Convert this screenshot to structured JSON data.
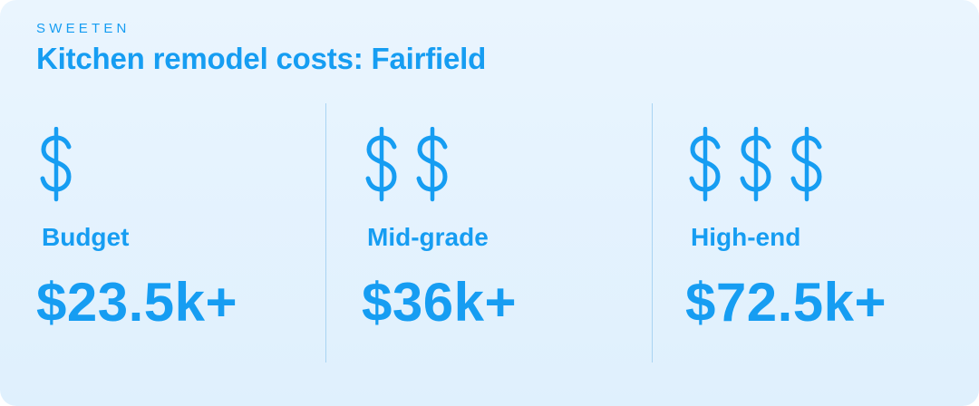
{
  "brand": "SWEETEN",
  "title": "Kitchen remodel costs: Fairfield",
  "colors": {
    "accent": "#169df2",
    "background_top": "#eaf5fe",
    "background_bottom": "#dff0fd",
    "divider": "#a9d4f3"
  },
  "tiers": [
    {
      "label": "Budget",
      "price": "$23.5k+",
      "dollar_signs": 1,
      "icon": "dollar-sign-icon"
    },
    {
      "label": "Mid-grade",
      "price": "$36k+",
      "dollar_signs": 2,
      "icon": "dollar-sign-icon"
    },
    {
      "label": "High-end",
      "price": "$72.5k+",
      "dollar_signs": 3,
      "icon": "dollar-sign-icon"
    }
  ]
}
